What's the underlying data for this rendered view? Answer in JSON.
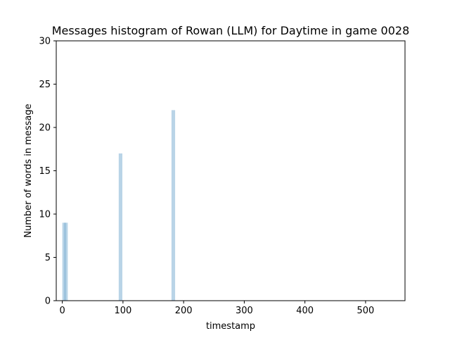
{
  "chart_data": {
    "type": "bar",
    "title": "Messages histogram of Rowan (LLM) for Daytime in game 0028",
    "xlabel": "timestamp",
    "ylabel": "Number of words in message",
    "xlim": [
      -10,
      565
    ],
    "ylim": [
      0,
      30
    ],
    "xticks": [
      0,
      100,
      200,
      300,
      400,
      500
    ],
    "yticks": [
      0,
      5,
      10,
      15,
      20,
      25,
      30
    ],
    "bar_width": 6,
    "bar_color": "#7fb1d3",
    "bar_opacity": 0.55,
    "bars": [
      {
        "x": 0,
        "value": 9
      },
      {
        "x": 3,
        "value": 9
      },
      {
        "x": 93,
        "value": 17
      },
      {
        "x": 180,
        "value": 22
      }
    ],
    "grid": false,
    "legend": "none"
  }
}
